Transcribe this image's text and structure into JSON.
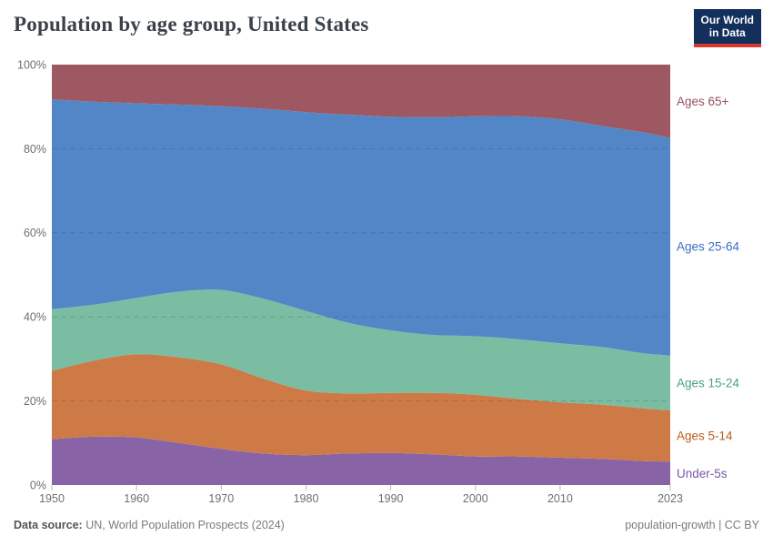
{
  "header": {
    "title": "Population by age group, United States"
  },
  "logo": {
    "line1": "Our World",
    "line2": "in Data",
    "bg_color": "#12305b",
    "accent_color": "#d73a2d"
  },
  "chart_data": {
    "type": "area",
    "stacked": true,
    "relative": true,
    "title": "Population by age group, United States",
    "unit": "%",
    "ylim": [
      0,
      100
    ],
    "grid": "dashed-horizontal",
    "legend_position": "right",
    "x": [
      1950,
      1955,
      1960,
      1965,
      1970,
      1975,
      1980,
      1985,
      1990,
      1995,
      2000,
      2005,
      2010,
      2015,
      2020,
      2023
    ],
    "xticks": [
      {
        "value": 1950,
        "label": "1950"
      },
      {
        "value": 1960,
        "label": "1960"
      },
      {
        "value": 1970,
        "label": "1970"
      },
      {
        "value": 1980,
        "label": "1980"
      },
      {
        "value": 1990,
        "label": "1990"
      },
      {
        "value": 2000,
        "label": "2000"
      },
      {
        "value": 2010,
        "label": "2010"
      },
      {
        "value": 2023,
        "label": "2023"
      }
    ],
    "yticks": [
      {
        "value": 0,
        "label": "0%"
      },
      {
        "value": 20,
        "label": "20%"
      },
      {
        "value": 40,
        "label": "40%"
      },
      {
        "value": 60,
        "label": "60%"
      },
      {
        "value": 80,
        "label": "80%"
      },
      {
        "value": 100,
        "label": "100%"
      }
    ],
    "series": [
      {
        "name": "Under-5s",
        "color": "#8864a7",
        "label_color": "#7857a4",
        "values": [
          10.9,
          11.5,
          11.3,
          10.0,
          8.6,
          7.5,
          7.1,
          7.5,
          7.6,
          7.3,
          6.8,
          6.8,
          6.5,
          6.2,
          5.7,
          5.6
        ]
      },
      {
        "name": "Ages 5-14",
        "color": "#ce7a47",
        "label_color": "#be5d1d",
        "values": [
          16.3,
          18.1,
          19.8,
          20.4,
          20.1,
          17.8,
          15.4,
          14.3,
          14.3,
          14.6,
          14.7,
          13.7,
          13.2,
          12.9,
          12.5,
          12.2
        ]
      },
      {
        "name": "Ages 15-24",
        "color": "#7abda2",
        "label_color": "#49a181",
        "values": [
          14.6,
          13.3,
          13.4,
          15.6,
          17.7,
          19.0,
          18.9,
          16.8,
          14.9,
          13.8,
          13.9,
          14.2,
          14.0,
          13.7,
          13.1,
          13.0
        ]
      },
      {
        "name": "Ages 25-64",
        "color": "#5386c6",
        "label_color": "#3b6fc2",
        "values": [
          49.9,
          48.3,
          46.3,
          44.5,
          43.7,
          45.2,
          47.3,
          49.5,
          50.8,
          51.8,
          52.3,
          53.0,
          53.3,
          52.6,
          52.5,
          51.8
        ]
      },
      {
        "name": "Ages 65+",
        "color": "#9e5861",
        "label_color": "#97515d",
        "values": [
          8.3,
          8.8,
          9.2,
          9.5,
          9.9,
          10.5,
          11.3,
          11.9,
          12.4,
          12.5,
          12.3,
          12.3,
          13.0,
          14.6,
          16.2,
          17.4
        ]
      }
    ]
  },
  "footer": {
    "datasource_label": "Data source:",
    "datasource_text": "UN, World Population Prospects (2024)",
    "right_text": "population-growth | CC BY"
  }
}
